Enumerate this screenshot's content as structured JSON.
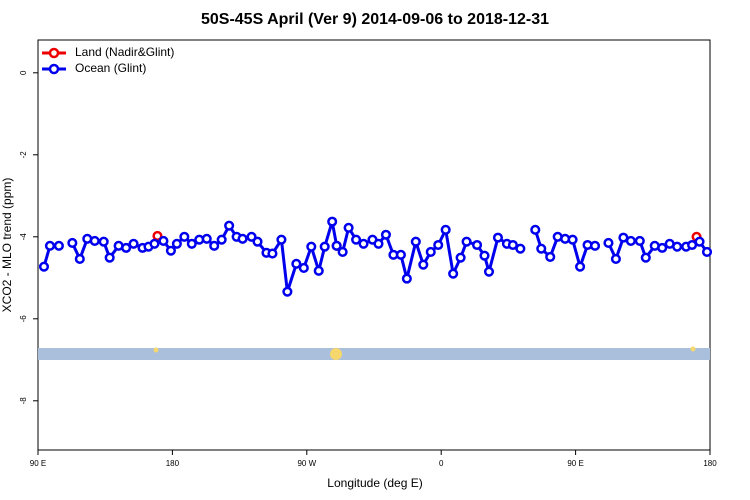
{
  "chart_data": {
    "type": "line",
    "title": "50S-45S April (Ver 9)   2014-09-06 to 2018-12-31",
    "xlabel": "Longitude (deg E)",
    "ylabel": "XCO2 - MLO trend (ppm)",
    "xlim": [
      90,
      540
    ],
    "ylim": [
      -9.2,
      0.8
    ],
    "xticks": [
      {
        "value": 90,
        "label": "90 E"
      },
      {
        "value": 180,
        "label": "180"
      },
      {
        "value": 270,
        "label": "90 W"
      },
      {
        "value": 360,
        "label": "0"
      },
      {
        "value": 450,
        "label": "90 E"
      },
      {
        "value": 540,
        "label": "180"
      }
    ],
    "yticks": [
      0,
      -2,
      -4,
      -6,
      -8
    ],
    "legend": "top-left",
    "series": [
      {
        "name": "Land (Nadir&Glint)",
        "color": "#ee0000",
        "x": [
          170,
          290,
          531
        ],
        "values": [
          -3.98,
          -4.22,
          -4.0
        ]
      },
      {
        "name": "Ocean (Glint)",
        "color": "#0000ee",
        "x": [
          94,
          98,
          104,
          null,
          113,
          118,
          123,
          128,
          134,
          138,
          144,
          149,
          154,
          160,
          164,
          168,
          174,
          179,
          183,
          188,
          193,
          198,
          203,
          208,
          213,
          218,
          223,
          227,
          233,
          237,
          243,
          247,
          253,
          257,
          263,
          268,
          273,
          278,
          282,
          287,
          290,
          294,
          298,
          303,
          308,
          314,
          318,
          323,
          328,
          333,
          337,
          343,
          348,
          353,
          358,
          363,
          368,
          373,
          377,
          384,
          389,
          392,
          398,
          404,
          408,
          413,
          null,
          423,
          427,
          433,
          438,
          443,
          448,
          453,
          458,
          463,
          null,
          472,
          477,
          482,
          487,
          493,
          497,
          503,
          508,
          513,
          518,
          524,
          528,
          533,
          538
        ],
        "values": [
          -4.73,
          -4.22,
          -4.22,
          null,
          -4.15,
          -4.54,
          -4.05,
          -4.1,
          -4.12,
          -4.51,
          -4.22,
          -4.27,
          -4.17,
          -4.27,
          -4.24,
          -4.17,
          -4.1,
          -4.34,
          -4.17,
          -4.0,
          -4.17,
          -4.07,
          -4.05,
          -4.22,
          -4.07,
          -3.73,
          -4.0,
          -4.05,
          -4.0,
          -4.12,
          -4.39,
          -4.41,
          -4.07,
          -5.34,
          -4.66,
          -4.76,
          -4.24,
          -4.83,
          -4.24,
          -3.63,
          -4.22,
          -4.37,
          -3.78,
          -4.07,
          -4.17,
          -4.07,
          -4.17,
          -3.95,
          -4.44,
          -4.44,
          -5.02,
          -4.12,
          -4.68,
          -4.37,
          -4.2,
          -3.83,
          -4.9,
          -4.51,
          -4.12,
          -4.2,
          -4.46,
          -4.85,
          -4.02,
          -4.17,
          -4.2,
          -4.29,
          null,
          -3.83,
          -4.29,
          -4.49,
          -4.0,
          -4.05,
          -4.07,
          -4.73,
          -4.2,
          -4.22,
          null,
          -4.15,
          -4.54,
          -4.02,
          -4.1,
          -4.1,
          -4.51,
          -4.22,
          -4.27,
          -4.17,
          -4.24,
          -4.24,
          -4.2,
          -4.12,
          -4.37
        ]
      }
    ]
  }
}
